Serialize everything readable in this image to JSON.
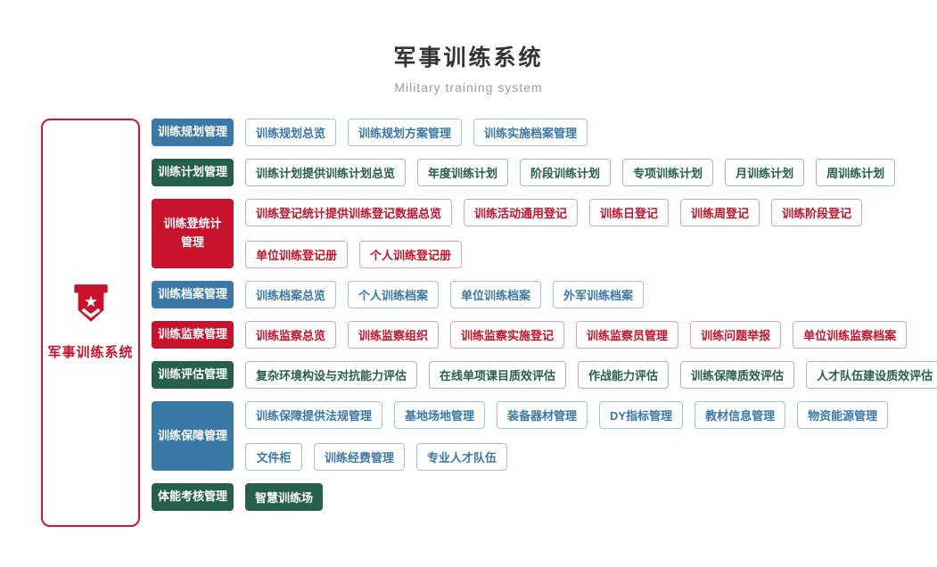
{
  "header": {
    "title": "军事训练系统",
    "subtitle": "Military training system"
  },
  "sidebar": {
    "label": "军事训练系统",
    "icon": "military-banner-icon",
    "border_color": "#d4152d",
    "label_color": "#c9122b"
  },
  "colors": {
    "blue": "#3a78a5",
    "green": "#26604b",
    "red": "#c9122b",
    "blue_border": "#a2c3d9",
    "green_border": "#a2beb3",
    "red_border": "#e6a3ae",
    "title": "#333333",
    "subtitle": "#9b9b9b"
  },
  "rows": [
    {
      "category": "训练规划管理",
      "color": "blue",
      "item_variant": "outline",
      "lines": [
        [
          "训练规划总览",
          "训练规划方案管理",
          "训练实施档案管理"
        ]
      ]
    },
    {
      "category": "训练计划管理",
      "color": "green",
      "item_variant": "outline",
      "lines": [
        [
          "训练计划提供训练计划总览",
          "年度训练计划",
          "阶段训练计划",
          "专项训练计划",
          "月训练计划",
          "周训练计划"
        ]
      ]
    },
    {
      "category": "训练登统计\n管理",
      "color": "red",
      "item_variant": "outline",
      "lines": [
        [
          "训练登记统计提供训练登记数据总览",
          "训练活动通用登记",
          "训练日登记",
          "训练周登记",
          "训练阶段登记"
        ],
        [
          "单位训练登记册",
          "个人训练登记册"
        ]
      ]
    },
    {
      "category": "训练档案管理",
      "color": "blue",
      "item_variant": "outline",
      "lines": [
        [
          "训练档案总览",
          "个人训练档案",
          "单位训练档案",
          "外军训练档案"
        ]
      ]
    },
    {
      "category": "训练监察管理",
      "color": "red",
      "item_variant": "outline",
      "lines": [
        [
          "训练监察总览",
          "训练监察组织",
          "训练监察实施登记",
          "训练监察员管理",
          "训练问题举报",
          "单位训练监察档案"
        ]
      ]
    },
    {
      "category": "训练评估管理",
      "color": "green",
      "item_variant": "outline",
      "lines": [
        [
          "复杂环境构设与对抗能力评估",
          "在线单项课目质效评估",
          "作战能力评估",
          "训练保障质效评估",
          "人才队伍建设质效评估"
        ]
      ]
    },
    {
      "category": "训练保障管理",
      "color": "blue",
      "item_variant": "outline",
      "lines": [
        [
          "训练保障提供法规管理",
          "基地场地管理",
          "装备器材管理",
          "DY指标管理",
          "教材信息管理",
          "物资能源管理"
        ],
        [
          "文件柜",
          "训练经费管理",
          "专业人才队伍"
        ]
      ]
    },
    {
      "category": "体能考核管理",
      "color": "green",
      "item_variant": "filled",
      "lines": [
        [
          "智慧训练场"
        ]
      ]
    }
  ]
}
